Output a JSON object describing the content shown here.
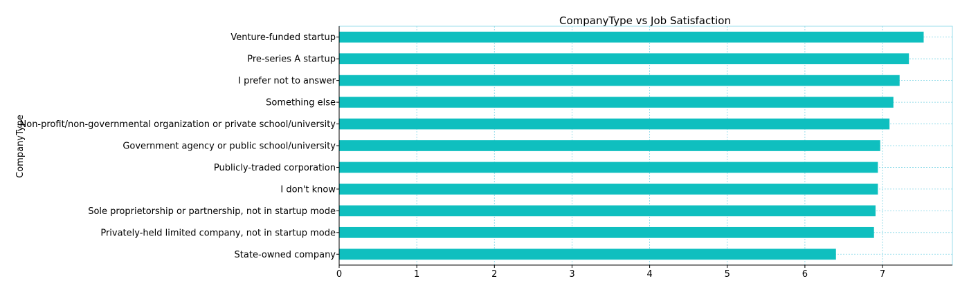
{
  "chart_data": {
    "type": "bar",
    "orientation": "horizontal",
    "title": "CompanyType vs Job Satisfaction",
    "xlabel": "",
    "ylabel": "CompanyType",
    "xlim": [
      0,
      7.9
    ],
    "xticks": [
      "0",
      "1",
      "2",
      "3",
      "4",
      "5",
      "6",
      "7"
    ],
    "grid": true,
    "bar_color": "#0fbfbf",
    "grid_color": "#7fd6e6",
    "categories": [
      "Venture-funded startup",
      "Pre-series A startup",
      "I prefer not to answer",
      "Something else",
      "Non-profit/non-governmental organization or private school/university",
      "Government agency or public school/university",
      "Publicly-traded corporation",
      "I don't know",
      "Sole proprietorship or partnership, not in startup mode",
      "Privately-held limited company, not in startup mode",
      "State-owned company"
    ],
    "values": [
      7.53,
      7.34,
      7.22,
      7.14,
      7.09,
      6.97,
      6.94,
      6.94,
      6.91,
      6.89,
      6.4
    ]
  }
}
